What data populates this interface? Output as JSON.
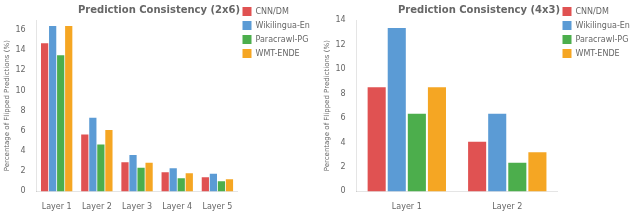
{
  "chart_data": [
    {
      "type": "bar",
      "title": "Prediction Consistency (2x6)",
      "y_label": "Percentage of Flipped Predictions (%)",
      "categories": [
        "Layer 1",
        "Layer 2",
        "Layer 3",
        "Layer 4",
        "Layer 5"
      ],
      "series": [
        {
          "name": "CNN/DM",
          "color": "#e05252",
          "values": [
            14.7,
            5.65,
            2.9,
            1.9,
            1.4
          ]
        },
        {
          "name": "Wikilingua-En",
          "color": "#5b9bd5",
          "values": [
            16.4,
            7.3,
            3.6,
            2.3,
            1.75
          ]
        },
        {
          "name": "Paracrawl-PG",
          "color": "#4cae4c",
          "values": [
            13.5,
            4.65,
            2.35,
            1.3,
            1.0
          ]
        },
        {
          "name": "WMT-ENDE",
          "color": "#f5a623",
          "values": [
            16.4,
            6.1,
            2.85,
            1.8,
            1.2
          ]
        }
      ],
      "ylim": [
        0,
        17
      ],
      "yticks": [
        0,
        2,
        4,
        6,
        8,
        10,
        12,
        14,
        16
      ],
      "grid": false,
      "legend": "upper right"
    },
    {
      "type": "bar",
      "title": "Prediction Consistency (4x3)",
      "y_label": "Percentage of Flipped Predictions (%)",
      "categories": [
        "Layer 1",
        "Layer 2"
      ],
      "series": [
        {
          "name": "CNN/DM",
          "color": "#e05252",
          "values": [
            8.5,
            4.05
          ]
        },
        {
          "name": "Wikilingua-En",
          "color": "#5b9bd5",
          "values": [
            13.35,
            6.35
          ]
        },
        {
          "name": "Paracrawl-PG",
          "color": "#4cae4c",
          "values": [
            6.35,
            2.35
          ]
        },
        {
          "name": "WMT-ENDE",
          "color": "#f5a623",
          "values": [
            8.5,
            3.2
          ]
        }
      ],
      "ylim": [
        0,
        14
      ],
      "yticks": [
        0,
        2,
        4,
        6,
        8,
        10,
        12,
        14
      ],
      "grid": false,
      "legend": "upper right"
    }
  ]
}
